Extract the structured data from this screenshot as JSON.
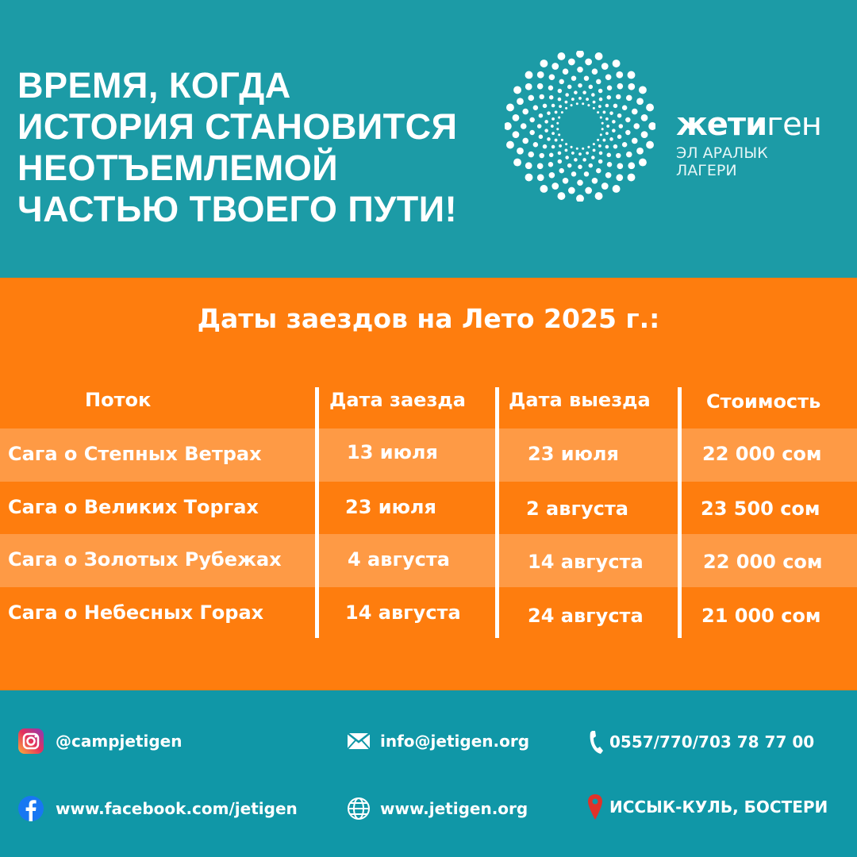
{
  "header": {
    "headline": [
      "ВРЕМЯ, КОГДА",
      "ИСТОРИЯ СТАНОВИТСЯ",
      "НЕОТЪЕМЛЕМОЙ",
      "ЧАСТЬЮ ТВОЕГО ПУТИ!"
    ],
    "brand_bold": "жети",
    "brand_regular": "ген",
    "brand_sub": [
      "ЭЛ АРАЛЫК",
      "ЛАГЕРИ"
    ]
  },
  "schedule": {
    "title": "Даты заездов на Лето 2025 г.:",
    "columns": [
      "Поток",
      "Дата заезда",
      "Дата выезда",
      "Стоимость"
    ],
    "rows": [
      [
        "Сага о Степных Ветрах",
        "13 июля",
        "23 июля",
        "22 000 сом"
      ],
      [
        "Сага о Великих Торгах",
        "23 июля",
        "2 августа",
        "23 500 сом"
      ],
      [
        "Сага о Золотых Рубежах",
        "4 августа",
        "14 августа",
        "22 000 сом"
      ],
      [
        "Сага о Небесных Горах",
        "14 августа",
        "24 августа",
        "21 000 сом"
      ]
    ]
  },
  "contacts": {
    "instagram": "@campjetigen",
    "email": "info@jetigen.org",
    "phone": "0557/770/703 78 77 00",
    "facebook": "www.facebook.com/jetigen",
    "website": "www.jetigen.org",
    "location": "ИССЫК-КУЛЬ, БОСТЕРИ"
  },
  "colors": {
    "teal": "#1c9ba6",
    "orange": "#fe7d0e",
    "orange_light": "#fe9a45",
    "pin": "#e0322a"
  }
}
